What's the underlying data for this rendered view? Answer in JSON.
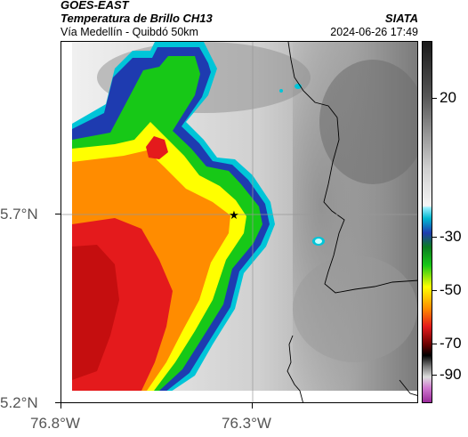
{
  "header": {
    "satellite": "GOES-EAST",
    "product": "Temperatura de Brillo CH13",
    "agency": "SIATA",
    "region": "Vía Medellín - Quibdó 50km",
    "timestamp": "2024-06-26 17:49"
  },
  "map": {
    "lon_ticks": [
      "76.8°W",
      "76.3°W"
    ],
    "lat_ticks": [
      "5.7°N",
      "5.2°N"
    ],
    "marker": "star-marker"
  },
  "colorbar": {
    "ticks": [
      "20",
      "-30",
      "-50",
      "-70",
      "-90"
    ],
    "colors": {
      "magenta": "#b04ab0",
      "black": "#000000",
      "red": "#e41a1c",
      "orange": "#ff8c00",
      "yellow": "#ffff00",
      "green": "#17c817",
      "blue": "#1f3cb0",
      "cyan": "#00bcd4",
      "gray_light": "#e6e6e6",
      "gray_dark": "#222222"
    }
  }
}
